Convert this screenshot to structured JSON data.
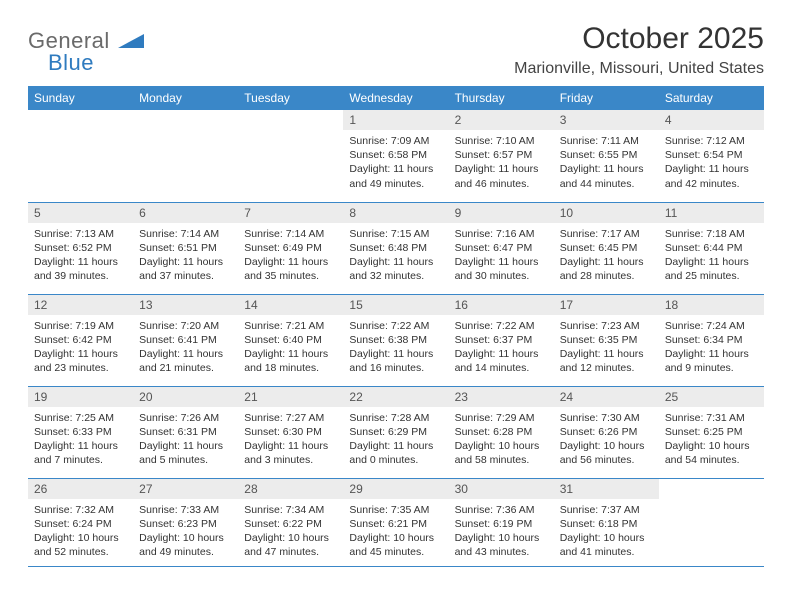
{
  "logo": {
    "text1": "General",
    "text2": "Blue",
    "shape_color": "#2f7bbf",
    "text1_color": "#6a6a6a"
  },
  "title": "October 2025",
  "subtitle": "Marionville, Missouri, United States",
  "header_bg": "#3a87c8",
  "daynum_bg": "#ececec",
  "border_color": "#3a87c8",
  "weekdays": [
    "Sunday",
    "Monday",
    "Tuesday",
    "Wednesday",
    "Thursday",
    "Friday",
    "Saturday"
  ],
  "days": {
    "1": {
      "n": "1",
      "r": "7:09 AM",
      "s": "6:58 PM",
      "d": "11 hours and 49 minutes."
    },
    "2": {
      "n": "2",
      "r": "7:10 AM",
      "s": "6:57 PM",
      "d": "11 hours and 46 minutes."
    },
    "3": {
      "n": "3",
      "r": "7:11 AM",
      "s": "6:55 PM",
      "d": "11 hours and 44 minutes."
    },
    "4": {
      "n": "4",
      "r": "7:12 AM",
      "s": "6:54 PM",
      "d": "11 hours and 42 minutes."
    },
    "5": {
      "n": "5",
      "r": "7:13 AM",
      "s": "6:52 PM",
      "d": "11 hours and 39 minutes."
    },
    "6": {
      "n": "6",
      "r": "7:14 AM",
      "s": "6:51 PM",
      "d": "11 hours and 37 minutes."
    },
    "7": {
      "n": "7",
      "r": "7:14 AM",
      "s": "6:49 PM",
      "d": "11 hours and 35 minutes."
    },
    "8": {
      "n": "8",
      "r": "7:15 AM",
      "s": "6:48 PM",
      "d": "11 hours and 32 minutes."
    },
    "9": {
      "n": "9",
      "r": "7:16 AM",
      "s": "6:47 PM",
      "d": "11 hours and 30 minutes."
    },
    "10": {
      "n": "10",
      "r": "7:17 AM",
      "s": "6:45 PM",
      "d": "11 hours and 28 minutes."
    },
    "11": {
      "n": "11",
      "r": "7:18 AM",
      "s": "6:44 PM",
      "d": "11 hours and 25 minutes."
    },
    "12": {
      "n": "12",
      "r": "7:19 AM",
      "s": "6:42 PM",
      "d": "11 hours and 23 minutes."
    },
    "13": {
      "n": "13",
      "r": "7:20 AM",
      "s": "6:41 PM",
      "d": "11 hours and 21 minutes."
    },
    "14": {
      "n": "14",
      "r": "7:21 AM",
      "s": "6:40 PM",
      "d": "11 hours and 18 minutes."
    },
    "15": {
      "n": "15",
      "r": "7:22 AM",
      "s": "6:38 PM",
      "d": "11 hours and 16 minutes."
    },
    "16": {
      "n": "16",
      "r": "7:22 AM",
      "s": "6:37 PM",
      "d": "11 hours and 14 minutes."
    },
    "17": {
      "n": "17",
      "r": "7:23 AM",
      "s": "6:35 PM",
      "d": "11 hours and 12 minutes."
    },
    "18": {
      "n": "18",
      "r": "7:24 AM",
      "s": "6:34 PM",
      "d": "11 hours and 9 minutes."
    },
    "19": {
      "n": "19",
      "r": "7:25 AM",
      "s": "6:33 PM",
      "d": "11 hours and 7 minutes."
    },
    "20": {
      "n": "20",
      "r": "7:26 AM",
      "s": "6:31 PM",
      "d": "11 hours and 5 minutes."
    },
    "21": {
      "n": "21",
      "r": "7:27 AM",
      "s": "6:30 PM",
      "d": "11 hours and 3 minutes."
    },
    "22": {
      "n": "22",
      "r": "7:28 AM",
      "s": "6:29 PM",
      "d": "11 hours and 0 minutes."
    },
    "23": {
      "n": "23",
      "r": "7:29 AM",
      "s": "6:28 PM",
      "d": "10 hours and 58 minutes."
    },
    "24": {
      "n": "24",
      "r": "7:30 AM",
      "s": "6:26 PM",
      "d": "10 hours and 56 minutes."
    },
    "25": {
      "n": "25",
      "r": "7:31 AM",
      "s": "6:25 PM",
      "d": "10 hours and 54 minutes."
    },
    "26": {
      "n": "26",
      "r": "7:32 AM",
      "s": "6:24 PM",
      "d": "10 hours and 52 minutes."
    },
    "27": {
      "n": "27",
      "r": "7:33 AM",
      "s": "6:23 PM",
      "d": "10 hours and 49 minutes."
    },
    "28": {
      "n": "28",
      "r": "7:34 AM",
      "s": "6:22 PM",
      "d": "10 hours and 47 minutes."
    },
    "29": {
      "n": "29",
      "r": "7:35 AM",
      "s": "6:21 PM",
      "d": "10 hours and 45 minutes."
    },
    "30": {
      "n": "30",
      "r": "7:36 AM",
      "s": "6:19 PM",
      "d": "10 hours and 43 minutes."
    },
    "31": {
      "n": "31",
      "r": "7:37 AM",
      "s": "6:18 PM",
      "d": "10 hours and 41 minutes."
    }
  },
  "labels": {
    "sunrise": "Sunrise:",
    "sunset": "Sunset:",
    "daylight": "Daylight:"
  },
  "grid": [
    [
      null,
      null,
      null,
      "1",
      "2",
      "3",
      "4"
    ],
    [
      "5",
      "6",
      "7",
      "8",
      "9",
      "10",
      "11"
    ],
    [
      "12",
      "13",
      "14",
      "15",
      "16",
      "17",
      "18"
    ],
    [
      "19",
      "20",
      "21",
      "22",
      "23",
      "24",
      "25"
    ],
    [
      "26",
      "27",
      "28",
      "29",
      "30",
      "31",
      null
    ]
  ],
  "font_sizes": {
    "title": 30,
    "subtitle": 16,
    "weekday": 12,
    "daynum": 12,
    "body": 10.5
  }
}
